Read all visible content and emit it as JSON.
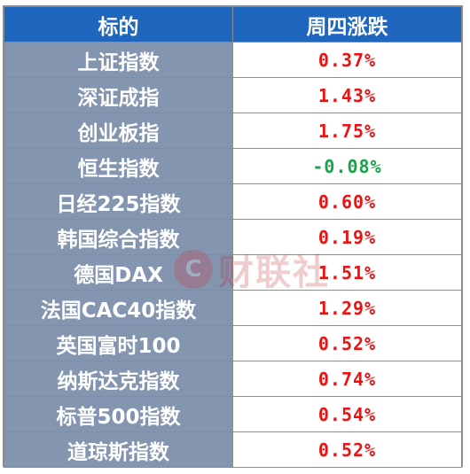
{
  "header": {
    "col1": "标的",
    "col2": "周四涨跌"
  },
  "rows": [
    {
      "name": "上证指数",
      "change": "0.37%",
      "direction": "up"
    },
    {
      "name": "深证成指",
      "change": "1.43%",
      "direction": "up"
    },
    {
      "name": "创业板指",
      "change": "1.75%",
      "direction": "up"
    },
    {
      "name": "恒生指数",
      "change": "-0.08%",
      "direction": "down"
    },
    {
      "name": "日经225指数",
      "change": "0.60%",
      "direction": "up"
    },
    {
      "name": "韩国综合指数",
      "change": "0.19%",
      "direction": "up"
    },
    {
      "name": "德国DAX",
      "change": "1.51%",
      "direction": "up"
    },
    {
      "name": "法国CAC40指数",
      "change": "1.29%",
      "direction": "up"
    },
    {
      "name": "英国富时100",
      "change": "0.52%",
      "direction": "up"
    },
    {
      "name": "纳斯达克指数",
      "change": "0.74%",
      "direction": "up"
    },
    {
      "name": "标普500指数",
      "change": "0.54%",
      "direction": "up"
    },
    {
      "name": "道琼斯指数",
      "change": "0.52%",
      "direction": "up"
    }
  ],
  "watermark": {
    "logo_glyph": "C",
    "text": "财联社",
    "icon": "cls-logo-icon"
  },
  "colors": {
    "header_bg": "#1f66bf",
    "name_bg": "#8495b0",
    "up": "#ee1111",
    "down": "#16a34a"
  }
}
